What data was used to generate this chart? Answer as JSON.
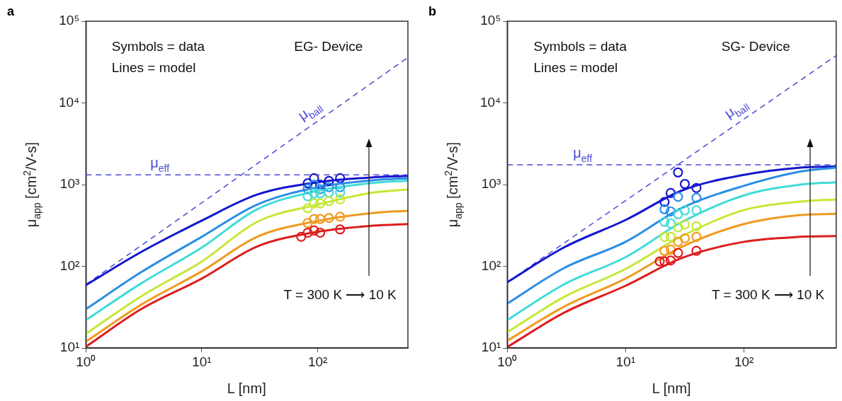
{
  "chart_data": [
    {
      "type": "line",
      "title": "a",
      "xlabel": "L [nm]",
      "ylabel": "μ$_{app}$ [cm$^{2}$/V-s]",
      "log": "xy",
      "xlim": [
        1,
        600
      ],
      "ylim": [
        10,
        100000
      ],
      "xticks": [
        {
          "value": 1,
          "label": "10⁰"
        },
        {
          "value": 10,
          "label": "10¹"
        },
        {
          "value": 100,
          "label": "10²"
        }
      ],
      "yticks": [
        {
          "value": 10,
          "label": "10¹"
        },
        {
          "value": 100,
          "label": "10²"
        },
        {
          "value": 1000,
          "label": "10³"
        },
        {
          "value": 10000,
          "label": "10⁴"
        },
        {
          "value": 100000,
          "label": "10⁵"
        }
      ],
      "legend": false,
      "grid": false,
      "annotations": [
        "Symbols = data",
        "Lines = model",
        "EG- Device",
        "T = 300 K ⟶ 10 K"
      ],
      "ref_lines": [
        {
          "axis": "y",
          "value": 1320,
          "label": "μ$_{eff}$",
          "color": "#4a4ad6",
          "line_style": "dashed"
        }
      ],
      "series": [
        {
          "name": "μ$_{ball}$",
          "color": "#4a4ad6",
          "line_style": "dashed",
          "x": [
            1,
            600
          ],
          "values": [
            60,
            36000
          ]
        },
        {
          "color": "#1616d0",
          "x": [
            1,
            3,
            10,
            30,
            100,
            300,
            600
          ],
          "values": [
            59,
            150,
            363,
            755,
            1070,
            1230,
            1280
          ]
        },
        {
          "color": "#2a8ee6",
          "x": [
            1,
            3,
            10,
            30,
            100,
            300,
            600
          ],
          "values": [
            30,
            85,
            230,
            570,
            930,
            1130,
            1200
          ]
        },
        {
          "color": "#40dcd8",
          "x": [
            1,
            3,
            10,
            30,
            100,
            300,
            600
          ],
          "values": [
            22,
            62,
            170,
            500,
            840,
            1050,
            1120
          ]
        },
        {
          "color": "#c4e834",
          "x": [
            1,
            3,
            10,
            30,
            100,
            300,
            600
          ],
          "values": [
            15,
            43,
            115,
            350,
            570,
            800,
            870
          ]
        },
        {
          "color": "#f09a1e",
          "x": [
            1,
            3,
            10,
            30,
            100,
            300,
            600
          ],
          "values": [
            12,
            34,
            87,
            230,
            360,
            450,
            480
          ]
        },
        {
          "color": "#dc1e1e",
          "x": [
            1,
            3,
            10,
            30,
            100,
            300,
            600
          ],
          "values": [
            10.4,
            30,
            71,
            175,
            265,
            315,
            330
          ]
        },
        {
          "type": "scatter",
          "marker": "circle",
          "color": "#1616d0",
          "x": [
            82,
            93,
            105,
            125,
            156
          ],
          "values": [
            1040,
            1200,
            1000,
            1110,
            1200
          ]
        },
        {
          "type": "scatter",
          "marker": "circle",
          "color": "#2a8ee6",
          "x": [
            82,
            93,
            105,
            125,
            156
          ],
          "values": [
            890,
            1000,
            880,
            930,
            930
          ]
        },
        {
          "type": "scatter",
          "marker": "circle",
          "color": "#40dcd8",
          "x": [
            82,
            93,
            105,
            125,
            156
          ],
          "values": [
            720,
            780,
            780,
            800,
            800
          ]
        },
        {
          "type": "scatter",
          "marker": "circle",
          "color": "#c4e834",
          "x": [
            82,
            93,
            105,
            125,
            156
          ],
          "values": [
            515,
            590,
            590,
            630,
            660
          ]
        },
        {
          "type": "scatter",
          "marker": "circle",
          "color": "#f09a1e",
          "x": [
            82,
            93,
            105,
            125,
            156
          ],
          "values": [
            340,
            380,
            380,
            390,
            405
          ]
        },
        {
          "type": "scatter",
          "marker": "circle",
          "color": "#dc1e1e",
          "x": [
            72,
            82,
            93,
            105,
            156
          ],
          "values": [
            230,
            258,
            275,
            258,
            283
          ]
        }
      ]
    },
    {
      "type": "line",
      "title": "b",
      "xlabel": "L [nm]",
      "ylabel": "μ$_{app}$ [cm$^{2}$/V-s]",
      "log": "xy",
      "xlim": [
        1,
        600
      ],
      "ylim": [
        10,
        100000
      ],
      "xticks": [
        {
          "value": 1,
          "label": "10⁰"
        },
        {
          "value": 10,
          "label": "10¹"
        },
        {
          "value": 100,
          "label": "10²"
        }
      ],
      "yticks": [
        {
          "value": 10,
          "label": "10¹"
        },
        {
          "value": 100,
          "label": "10²"
        },
        {
          "value": 1000,
          "label": "10³"
        },
        {
          "value": 10000,
          "label": "10⁴"
        },
        {
          "value": 100000,
          "label": "10⁵"
        }
      ],
      "legend": false,
      "grid": false,
      "annotations": [
        "Symbols = data",
        "Lines = model",
        "SG- Device",
        "T = 300 K ⟶ 10 K"
      ],
      "ref_lines": [
        {
          "axis": "y",
          "value": 1750,
          "label": "μ$_{eff}$",
          "color": "#4a4ad6",
          "line_style": "dashed"
        }
      ],
      "series": [
        {
          "name": "μ$_{ball}$",
          "color": "#4a4ad6",
          "line_style": "dashed",
          "x": [
            1,
            600
          ],
          "values": [
            64,
            38000
          ]
        },
        {
          "color": "#1616d0",
          "x": [
            1,
            3,
            10,
            30,
            100,
            300,
            600
          ],
          "values": [
            64,
            170,
            370,
            850,
            1320,
            1620,
            1670
          ]
        },
        {
          "color": "#2a8ee6",
          "x": [
            1,
            3,
            10,
            30,
            100,
            300,
            600
          ],
          "values": [
            35,
            95,
            200,
            520,
            970,
            1450,
            1620
          ]
        },
        {
          "color": "#40dcd8",
          "x": [
            1,
            3,
            10,
            30,
            100,
            300,
            600
          ],
          "values": [
            22,
            60,
            130,
            350,
            740,
            1000,
            1070
          ]
        },
        {
          "color": "#c4e834",
          "x": [
            1,
            3,
            10,
            30,
            100,
            300,
            600
          ],
          "values": [
            15.6,
            42,
            93,
            235,
            490,
            620,
            660
          ]
        },
        {
          "color": "#f09a1e",
          "x": [
            1,
            3,
            10,
            30,
            100,
            300,
            600
          ],
          "values": [
            12.3,
            32,
            71,
            174,
            330,
            425,
            440
          ]
        },
        {
          "color": "#dc1e1e",
          "x": [
            1,
            3,
            10,
            30,
            100,
            300,
            600
          ],
          "values": [
            10.3,
            27,
            58,
            127,
            200,
            230,
            235
          ]
        },
        {
          "type": "scatter",
          "marker": "circle",
          "color": "#1616d0",
          "x": [
            21.3,
            24,
            27.7,
            31.6,
            39.6
          ],
          "values": [
            615,
            790,
            1410,
            1020,
            910
          ]
        },
        {
          "type": "scatter",
          "marker": "circle",
          "color": "#2a8ee6",
          "x": [
            21.3,
            24,
            27.7,
            39.6
          ],
          "values": [
            500,
            470,
            710,
            690
          ]
        },
        {
          "type": "scatter",
          "marker": "circle",
          "color": "#40dcd8",
          "x": [
            21.3,
            24,
            27.7,
            31.6,
            39.6
          ],
          "values": [
            350,
            335,
            435,
            485,
            485
          ]
        },
        {
          "type": "scatter",
          "marker": "circle",
          "color": "#c4e834",
          "x": [
            21.3,
            24,
            27.7,
            31.6,
            39.6
          ],
          "values": [
            230,
            230,
            300,
            325,
            310
          ]
        },
        {
          "type": "scatter",
          "marker": "circle",
          "color": "#f09a1e",
          "x": [
            21.3,
            24,
            27.7,
            31.6,
            39.6
          ],
          "values": [
            155,
            160,
            200,
            220,
            230
          ]
        },
        {
          "type": "scatter",
          "marker": "circle",
          "color": "#dc1e1e",
          "x": [
            19.4,
            21.3,
            24,
            27.7,
            39.6
          ],
          "values": [
            115,
            115,
            118,
            146,
            155
          ]
        }
      ]
    }
  ]
}
